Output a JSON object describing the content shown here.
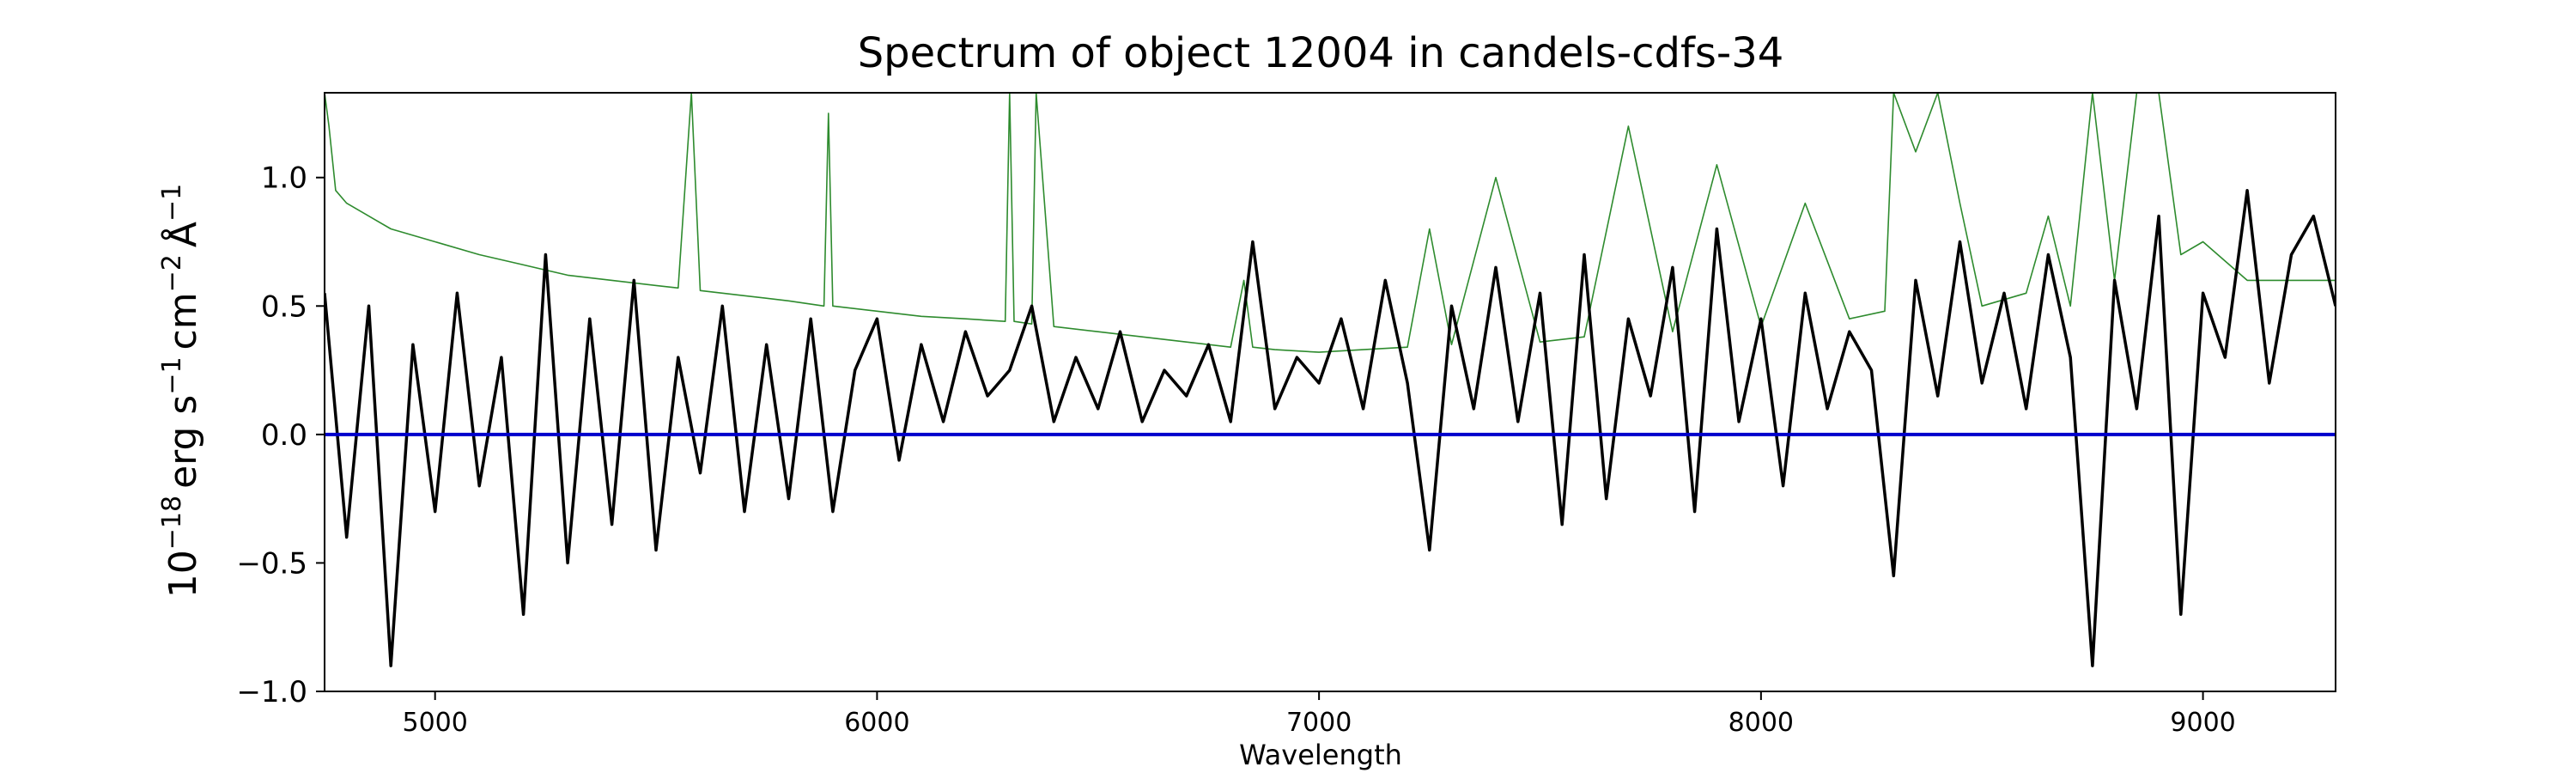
{
  "chart_data": {
    "type": "line",
    "title": "Spectrum of object 12004 in candels-cdfs-34",
    "xlabel": "Wavelength",
    "ylabel": {
      "base": "10",
      "exp_base": "−18",
      "unit1": "erg s",
      "exp1": "−1",
      "unit2": "cm",
      "exp2": "−2",
      "unit3": "Å",
      "exp3": "−1"
    },
    "xlim": [
      4750,
      9300
    ],
    "ylim": [
      -1.0,
      1.33
    ],
    "xticks": [
      5000,
      6000,
      7000,
      8000,
      9000
    ],
    "xtick_labels": [
      "5000",
      "6000",
      "7000",
      "8000",
      "9000"
    ],
    "yticks": [
      -1.0,
      -0.5,
      0.0,
      0.5,
      1.0
    ],
    "ytick_labels": [
      "−1.0",
      "−0.5",
      "0.0",
      "0.5",
      "1.0"
    ],
    "grid": false,
    "colors": {
      "flux": "#000000",
      "error": "#2e8b2e",
      "zero": "#0000cc"
    },
    "series": [
      {
        "role": "flux",
        "x": [
          4750,
          4800,
          4850,
          4900,
          4950,
          5000,
          5050,
          5100,
          5150,
          5200,
          5250,
          5300,
          5350,
          5400,
          5450,
          5500,
          5550,
          5600,
          5650,
          5700,
          5750,
          5800,
          5850,
          5900,
          5950,
          6000,
          6050,
          6100,
          6150,
          6200,
          6250,
          6300,
          6350,
          6400,
          6450,
          6500,
          6550,
          6600,
          6650,
          6700,
          6750,
          6800,
          6850,
          6900,
          6950,
          7000,
          7050,
          7100,
          7150,
          7200,
          7250,
          7300,
          7350,
          7400,
          7450,
          7500,
          7550,
          7600,
          7650,
          7700,
          7750,
          7800,
          7850,
          7900,
          7950,
          8000,
          8050,
          8100,
          8150,
          8200,
          8250,
          8300,
          8350,
          8400,
          8450,
          8500,
          8550,
          8600,
          8650,
          8700,
          8750,
          8800,
          8850,
          8900,
          8950,
          9000,
          9050,
          9100,
          9150,
          9200,
          9250,
          9300
        ],
        "y": [
          0.55,
          -0.4,
          0.5,
          -0.9,
          0.35,
          -0.3,
          0.55,
          -0.2,
          0.3,
          -0.7,
          0.7,
          -0.5,
          0.45,
          -0.35,
          0.6,
          -0.45,
          0.3,
          -0.15,
          0.5,
          -0.3,
          0.35,
          -0.25,
          0.45,
          -0.3,
          0.25,
          0.45,
          -0.1,
          0.35,
          0.05,
          0.4,
          0.15,
          0.25,
          0.5,
          0.05,
          0.3,
          0.1,
          0.4,
          0.05,
          0.25,
          0.15,
          0.35,
          0.05,
          0.75,
          0.1,
          0.3,
          0.2,
          0.45,
          0.1,
          0.6,
          0.2,
          -0.45,
          0.5,
          0.1,
          0.65,
          0.05,
          0.55,
          -0.35,
          0.7,
          -0.25,
          0.45,
          0.15,
          0.65,
          -0.3,
          0.8,
          0.05,
          0.45,
          -0.2,
          0.55,
          0.1,
          0.4,
          0.25,
          -0.55,
          0.6,
          0.15,
          0.75,
          0.2,
          0.55,
          0.1,
          0.7,
          0.3,
          -0.9,
          0.6,
          0.1,
          0.85,
          -0.7,
          0.55,
          0.3,
          0.95,
          0.2,
          0.7,
          0.85,
          0.5
        ]
      },
      {
        "role": "error",
        "x": [
          4750,
          4760,
          4775,
          4800,
          4850,
          4900,
          5000,
          5100,
          5200,
          5300,
          5400,
          5500,
          5550,
          5580,
          5600,
          5700,
          5800,
          5880,
          5890,
          5900,
          6000,
          6100,
          6200,
          6290,
          6300,
          6310,
          6350,
          6360,
          6400,
          6500,
          6600,
          6700,
          6800,
          6830,
          6850,
          6900,
          7000,
          7100,
          7200,
          7250,
          7300,
          7400,
          7500,
          7600,
          7700,
          7800,
          7900,
          8000,
          8100,
          8200,
          8280,
          8300,
          8350,
          8400,
          8450,
          8500,
          8600,
          8650,
          8700,
          8750,
          8800,
          8850,
          8900,
          8950,
          9000,
          9100,
          9200,
          9300
        ],
        "y": [
          1.33,
          1.2,
          0.95,
          0.9,
          0.85,
          0.8,
          0.75,
          0.7,
          0.66,
          0.62,
          0.6,
          0.58,
          0.57,
          1.33,
          0.56,
          0.54,
          0.52,
          0.5,
          1.25,
          0.5,
          0.48,
          0.46,
          0.45,
          0.44,
          1.33,
          0.44,
          0.43,
          1.33,
          0.42,
          0.4,
          0.38,
          0.36,
          0.34,
          0.6,
          0.34,
          0.33,
          0.32,
          0.33,
          0.34,
          0.8,
          0.35,
          1.0,
          0.36,
          0.38,
          1.2,
          0.4,
          1.05,
          0.42,
          0.9,
          0.45,
          0.48,
          1.33,
          1.1,
          1.33,
          0.9,
          0.5,
          0.55,
          0.85,
          0.5,
          1.33,
          0.6,
          1.33,
          1.33,
          0.7,
          0.75,
          0.6,
          0.6,
          0.6
        ]
      },
      {
        "role": "zero",
        "x": [
          4750,
          9300
        ],
        "y": [
          0.0,
          0.0
        ]
      }
    ]
  }
}
